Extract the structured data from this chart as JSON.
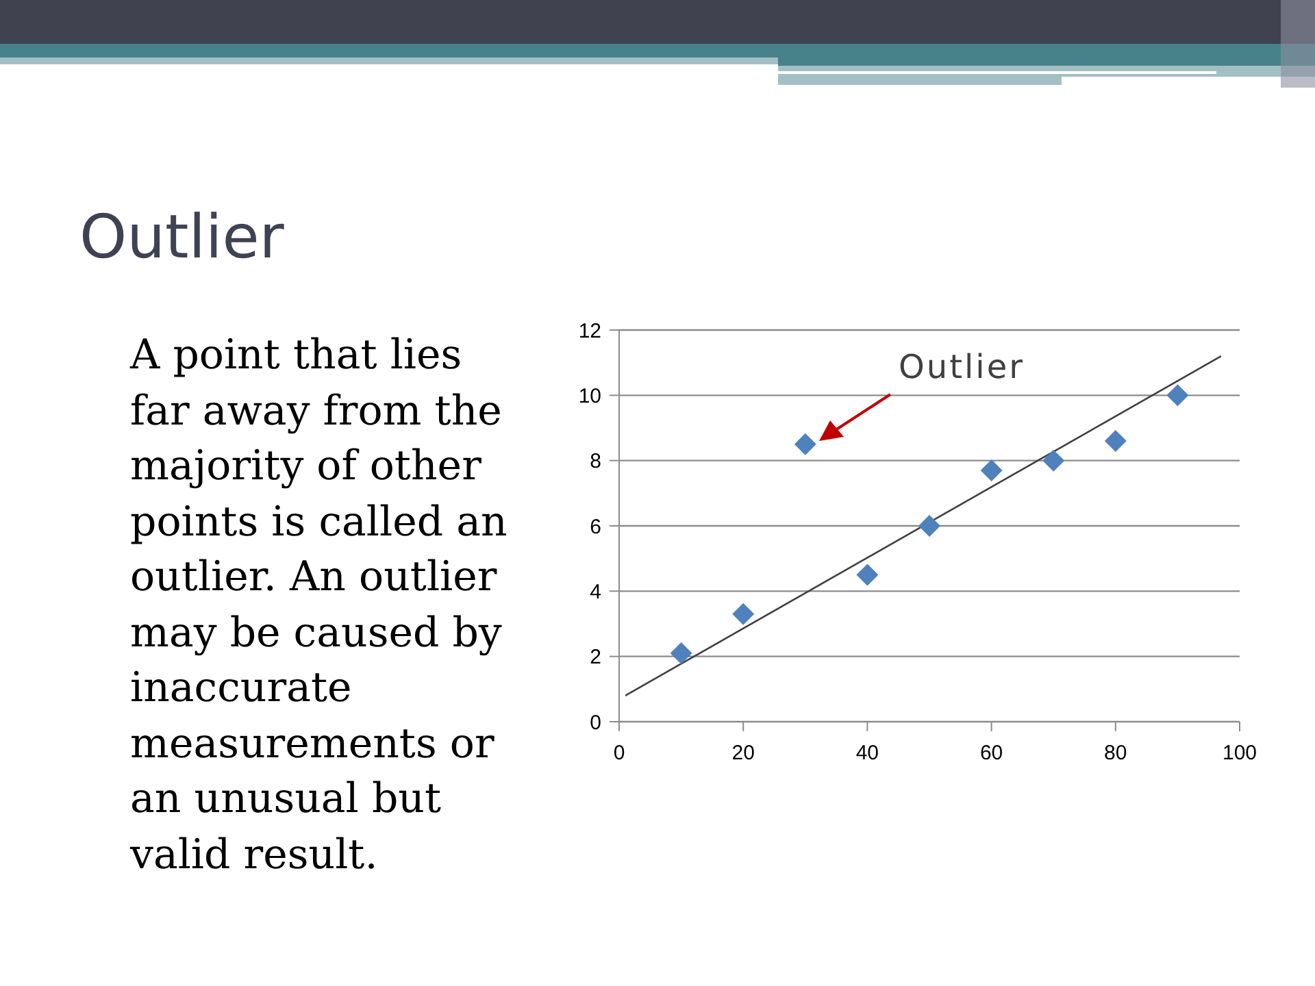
{
  "chart_data": {
    "type": "scatter",
    "title": "Outlier",
    "annotations": [
      "A point that lies far away from the majority of other points is called an outlier. An outlier may be caused by inaccurate measurements or an unusual but valid result.",
      "Outlier"
    ],
    "xlim": [
      0,
      100
    ],
    "xticks": [
      0,
      20,
      40,
      60,
      80,
      100
    ],
    "ylim": [
      0,
      12
    ],
    "yticks": [
      0,
      2,
      4,
      6,
      8,
      10,
      12
    ],
    "grid": "y",
    "marker": "diamond",
    "series": [
      {
        "type": "scatter",
        "color": "#4f81bd",
        "x": [
          10,
          20,
          30,
          40,
          50,
          60,
          70,
          80,
          90
        ],
        "values": [
          2.1,
          3.3,
          8.5,
          4.5,
          6.0,
          7.7,
          8.0,
          8.6,
          10.0
        ]
      },
      {
        "type": "line",
        "color": "#404040",
        "marker": "none",
        "x": [
          1,
          97
        ],
        "values": [
          0.8,
          11.2
        ]
      }
    ]
  }
}
